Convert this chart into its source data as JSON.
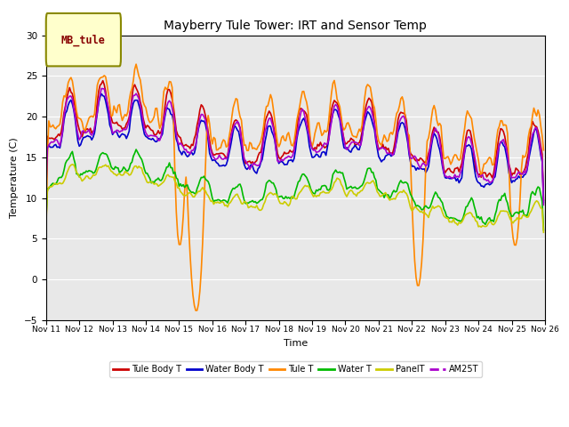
{
  "title": "Mayberry Tule Tower: IRT and Sensor Temp",
  "xlabel": "Time",
  "ylabel": "Temperature (C)",
  "ylim": [
    -5,
    30
  ],
  "yticks": [
    -5,
    0,
    5,
    10,
    15,
    20,
    25,
    30
  ],
  "xlim": [
    0,
    360
  ],
  "n_points": 360,
  "x_tick_positions": [
    0,
    24,
    48,
    72,
    96,
    120,
    144,
    168,
    192,
    216,
    240,
    264,
    288,
    312,
    336,
    360
  ],
  "x_tick_labels": [
    "Nov 11",
    "Nov 12",
    "Nov 13",
    "Nov 14",
    "Nov 15",
    "Nov 16",
    "Nov 17",
    "Nov 18",
    "Nov 19",
    "Nov 20",
    "Nov 21",
    "Nov 22",
    "Nov 23",
    "Nov 24",
    "Nov 25",
    "Nov 26"
  ],
  "fig_bg": "#ffffff",
  "plot_bg": "#e8e8e8",
  "grid_color": "#ffffff",
  "series": [
    {
      "name": "Tule Body T",
      "color": "#cc0000",
      "lw": 1.2
    },
    {
      "name": "Water Body T",
      "color": "#0000cc",
      "lw": 1.2
    },
    {
      "name": "Tule T",
      "color": "#ff8800",
      "lw": 1.2
    },
    {
      "name": "Water T",
      "color": "#00bb00",
      "lw": 1.2
    },
    {
      "name": "PanelT",
      "color": "#cccc00",
      "lw": 1.2
    },
    {
      "name": "AM25T",
      "color": "#aa00cc",
      "lw": 1.2
    }
  ],
  "legend_box_label": "MB_tule",
  "legend_box_facecolor": "#ffffcc",
  "legend_box_edgecolor": "#888800",
  "legend_box_textcolor": "#880000"
}
